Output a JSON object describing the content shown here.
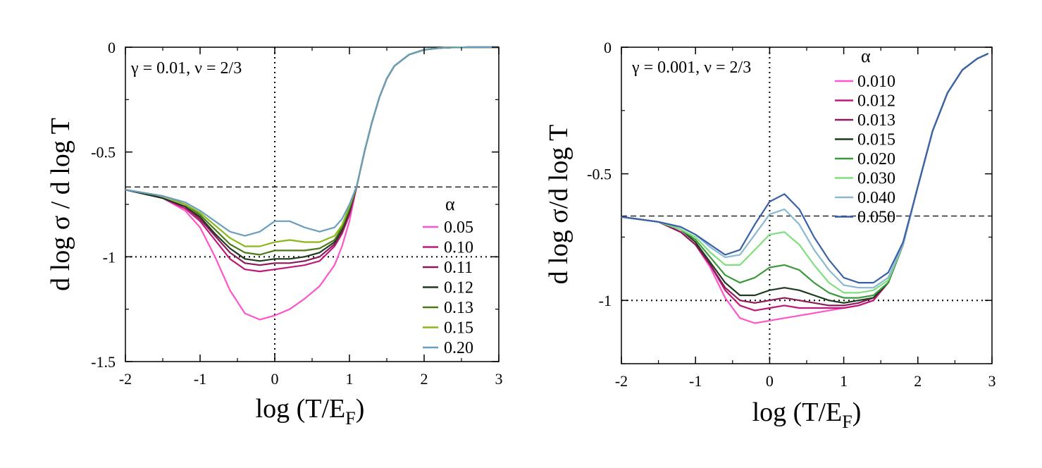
{
  "chart_data": [
    {
      "type": "line",
      "title": "",
      "annotation": "γ = 0.01, ν = 2/3",
      "xlabel": "log (T/E",
      "xlabel_sub": "F",
      "xlabel_close": ")",
      "ylabel": "d log σ / d log T",
      "xlim": [
        -2,
        3
      ],
      "ylim": [
        -1.5,
        0
      ],
      "xticks": [
        -2,
        -1,
        0,
        1,
        2,
        3
      ],
      "xtick_labels": [
        "-2",
        "-1",
        "0",
        "1",
        "2",
        "3"
      ],
      "yticks": [
        0,
        -0.5,
        -1,
        -1.5
      ],
      "ytick_labels": [
        "0",
        "-0.5",
        "-1",
        "-1.5"
      ],
      "reference_lines": [
        {
          "orientation": "horizontal",
          "value": -0.6667,
          "style": "dashed"
        },
        {
          "orientation": "horizontal",
          "value": -1,
          "style": "dotted"
        },
        {
          "orientation": "vertical",
          "value": 0,
          "style": "dotted"
        }
      ],
      "legend_title": "α",
      "legend_position": "right",
      "series": [
        {
          "name": "0.05",
          "color": "#ff55cc",
          "x": [
            -2,
            -1.5,
            -1.2,
            -1.0,
            -0.8,
            -0.6,
            -0.4,
            -0.2,
            0.0,
            0.2,
            0.4,
            0.6,
            0.8,
            0.9,
            1.0,
            1.1,
            1.2,
            1.3,
            1.4,
            1.5,
            1.6,
            1.8,
            2.0,
            2.2,
            2.4,
            2.6,
            2.8,
            3.0
          ],
          "y": [
            -0.68,
            -0.72,
            -0.78,
            -0.86,
            -1.0,
            -1.16,
            -1.27,
            -1.3,
            -1.28,
            -1.25,
            -1.2,
            -1.14,
            -1.04,
            -0.95,
            -0.83,
            -0.66,
            -0.5,
            -0.36,
            -0.24,
            -0.15,
            -0.09,
            -0.035,
            -0.012,
            -0.004,
            -0.001,
            0,
            0,
            0
          ]
        },
        {
          "name": "0.10",
          "color": "#c0187a",
          "x": [
            -2,
            -1.5,
            -1.2,
            -1.0,
            -0.8,
            -0.6,
            -0.4,
            -0.2,
            0.0,
            0.2,
            0.4,
            0.6,
            0.8,
            0.9,
            1.0,
            1.1,
            1.2,
            1.3,
            1.4,
            1.5,
            1.6,
            1.8,
            2.0,
            2.2,
            2.4,
            2.6,
            2.8,
            3.0
          ],
          "y": [
            -0.68,
            -0.72,
            -0.77,
            -0.83,
            -0.92,
            -1.01,
            -1.06,
            -1.07,
            -1.06,
            -1.05,
            -1.04,
            -1.02,
            -0.95,
            -0.89,
            -0.8,
            -0.66,
            -0.5,
            -0.36,
            -0.24,
            -0.15,
            -0.09,
            -0.035,
            -0.012,
            -0.004,
            -0.001,
            0,
            0,
            0
          ]
        },
        {
          "name": "0.11",
          "color": "#8b1a5a",
          "x": [
            -2,
            -1.5,
            -1.2,
            -1.0,
            -0.8,
            -0.6,
            -0.4,
            -0.2,
            0.0,
            0.2,
            0.4,
            0.6,
            0.8,
            0.9,
            1.0,
            1.1,
            1.2,
            1.3,
            1.4,
            1.5,
            1.6,
            1.8,
            2.0,
            2.2,
            2.4,
            2.6,
            2.8,
            3.0
          ],
          "y": [
            -0.68,
            -0.72,
            -0.76,
            -0.82,
            -0.9,
            -0.98,
            -1.03,
            -1.04,
            -1.03,
            -1.03,
            -1.02,
            -1.0,
            -0.94,
            -0.88,
            -0.79,
            -0.66,
            -0.5,
            -0.36,
            -0.24,
            -0.15,
            -0.09,
            -0.035,
            -0.012,
            -0.004,
            -0.001,
            0,
            0,
            0
          ]
        },
        {
          "name": "0.12",
          "color": "#1e3a1e",
          "x": [
            -2,
            -1.5,
            -1.2,
            -1.0,
            -0.8,
            -0.6,
            -0.4,
            -0.2,
            0.0,
            0.2,
            0.4,
            0.6,
            0.8,
            0.9,
            1.0,
            1.1,
            1.2,
            1.3,
            1.4,
            1.5,
            1.6,
            1.8,
            2.0,
            2.2,
            2.4,
            2.6,
            2.8,
            3.0
          ],
          "y": [
            -0.68,
            -0.72,
            -0.76,
            -0.81,
            -0.89,
            -0.96,
            -1.01,
            -1.02,
            -1.01,
            -1.01,
            -1.0,
            -0.98,
            -0.93,
            -0.87,
            -0.78,
            -0.66,
            -0.5,
            -0.36,
            -0.24,
            -0.15,
            -0.09,
            -0.035,
            -0.012,
            -0.004,
            -0.001,
            0,
            0,
            0
          ]
        },
        {
          "name": "0.13",
          "color": "#4a7a1a",
          "x": [
            -2,
            -1.5,
            -1.2,
            -1.0,
            -0.8,
            -0.6,
            -0.4,
            -0.2,
            0.0,
            0.2,
            0.4,
            0.6,
            0.8,
            0.9,
            1.0,
            1.1,
            1.2,
            1.3,
            1.4,
            1.5,
            1.6,
            1.8,
            2.0,
            2.2,
            2.4,
            2.6,
            2.8,
            3.0
          ],
          "y": [
            -0.68,
            -0.71,
            -0.75,
            -0.8,
            -0.87,
            -0.94,
            -0.98,
            -0.99,
            -0.97,
            -0.97,
            -0.97,
            -0.96,
            -0.92,
            -0.86,
            -0.77,
            -0.66,
            -0.5,
            -0.36,
            -0.24,
            -0.15,
            -0.09,
            -0.035,
            -0.012,
            -0.004,
            -0.001,
            0,
            0,
            0
          ]
        },
        {
          "name": "0.15",
          "color": "#8ab81a",
          "x": [
            -2,
            -1.5,
            -1.2,
            -1.0,
            -0.8,
            -0.6,
            -0.4,
            -0.2,
            0.0,
            0.2,
            0.4,
            0.6,
            0.8,
            0.9,
            1.0,
            1.1,
            1.2,
            1.3,
            1.4,
            1.5,
            1.6,
            1.8,
            2.0,
            2.2,
            2.4,
            2.6,
            2.8,
            3.0
          ],
          "y": [
            -0.68,
            -0.71,
            -0.75,
            -0.79,
            -0.85,
            -0.91,
            -0.95,
            -0.95,
            -0.93,
            -0.92,
            -0.93,
            -0.93,
            -0.9,
            -0.85,
            -0.76,
            -0.66,
            -0.5,
            -0.36,
            -0.24,
            -0.15,
            -0.09,
            -0.035,
            -0.012,
            -0.004,
            -0.001,
            0,
            0,
            0
          ]
        },
        {
          "name": "0.20",
          "color": "#6a9ec0",
          "x": [
            -2,
            -1.5,
            -1.2,
            -1.0,
            -0.8,
            -0.6,
            -0.4,
            -0.2,
            0.0,
            0.2,
            0.4,
            0.6,
            0.8,
            0.9,
            1.0,
            1.1,
            1.2,
            1.3,
            1.4,
            1.5,
            1.6,
            1.8,
            2.0,
            2.2,
            2.4,
            2.6,
            2.8,
            3.0
          ],
          "y": [
            -0.68,
            -0.71,
            -0.74,
            -0.78,
            -0.83,
            -0.88,
            -0.9,
            -0.88,
            -0.83,
            -0.83,
            -0.86,
            -0.88,
            -0.86,
            -0.82,
            -0.75,
            -0.66,
            -0.5,
            -0.36,
            -0.24,
            -0.15,
            -0.09,
            -0.035,
            -0.012,
            -0.004,
            -0.001,
            0,
            0,
            0
          ]
        }
      ]
    },
    {
      "type": "line",
      "title": "",
      "annotation": "γ = 0.001, ν = 2/3",
      "xlabel": "log (T/E",
      "xlabel_sub": "F",
      "xlabel_close": ")",
      "ylabel": "d log σ/d log T",
      "xlim": [
        -2,
        3
      ],
      "ylim": [
        -1.25,
        0
      ],
      "xticks": [
        -2,
        -1,
        0,
        1,
        2,
        3
      ],
      "xtick_labels": [
        "-2",
        "-1",
        "0",
        "1",
        "2",
        "3"
      ],
      "yticks": [
        0,
        -0.5,
        -1
      ],
      "ytick_labels": [
        "0",
        "-0.5",
        "-1"
      ],
      "reference_lines": [
        {
          "orientation": "horizontal",
          "value": -0.6667,
          "style": "dashed"
        },
        {
          "orientation": "horizontal",
          "value": -1,
          "style": "dotted"
        },
        {
          "orientation": "vertical",
          "value": 0,
          "style": "dotted"
        }
      ],
      "legend_title": "α",
      "legend_position": "top-right",
      "series": [
        {
          "name": "0.010",
          "color": "#ff55cc",
          "x": [
            -2,
            -1.5,
            -1.2,
            -1.0,
            -0.8,
            -0.6,
            -0.4,
            -0.2,
            0.0,
            0.2,
            0.4,
            0.6,
            0.8,
            1.0,
            1.2,
            1.4,
            1.6,
            1.8,
            2.0,
            2.2,
            2.4,
            2.6,
            2.8,
            2.95
          ],
          "y": [
            -0.67,
            -0.69,
            -0.73,
            -0.78,
            -0.87,
            -0.99,
            -1.07,
            -1.09,
            -1.08,
            -1.07,
            -1.06,
            -1.05,
            -1.04,
            -1.03,
            -1.02,
            -1.0,
            -0.93,
            -0.78,
            -0.55,
            -0.33,
            -0.18,
            -0.09,
            -0.045,
            -0.025
          ]
        },
        {
          "name": "0.012",
          "color": "#c0187a",
          "x": [
            -2,
            -1.5,
            -1.2,
            -1.0,
            -0.8,
            -0.6,
            -0.4,
            -0.2,
            0.0,
            0.2,
            0.4,
            0.6,
            0.8,
            1.0,
            1.2,
            1.4,
            1.6,
            1.8,
            2.0,
            2.2,
            2.4,
            2.6,
            2.8,
            2.95
          ],
          "y": [
            -0.67,
            -0.69,
            -0.73,
            -0.78,
            -0.86,
            -0.96,
            -1.02,
            -1.04,
            -1.03,
            -1.02,
            -1.03,
            -1.03,
            -1.03,
            -1.03,
            -1.02,
            -1.0,
            -0.93,
            -0.78,
            -0.55,
            -0.33,
            -0.18,
            -0.09,
            -0.045,
            -0.025
          ]
        },
        {
          "name": "0.013",
          "color": "#8b1a5a",
          "x": [
            -2,
            -1.5,
            -1.2,
            -1.0,
            -0.8,
            -0.6,
            -0.4,
            -0.2,
            0.0,
            0.2,
            0.4,
            0.6,
            0.8,
            1.0,
            1.2,
            1.4,
            1.6,
            1.8,
            2.0,
            2.2,
            2.4,
            2.6,
            2.8,
            2.95
          ],
          "y": [
            -0.67,
            -0.69,
            -0.73,
            -0.78,
            -0.86,
            -0.95,
            -1.0,
            -1.01,
            -1.0,
            -0.99,
            -1.0,
            -1.01,
            -1.02,
            -1.02,
            -1.01,
            -0.99,
            -0.93,
            -0.78,
            -0.55,
            -0.33,
            -0.18,
            -0.09,
            -0.045,
            -0.025
          ]
        },
        {
          "name": "0.015",
          "color": "#1e3a1e",
          "x": [
            -2,
            -1.5,
            -1.2,
            -1.0,
            -0.8,
            -0.6,
            -0.4,
            -0.2,
            0.0,
            0.2,
            0.4,
            0.6,
            0.8,
            1.0,
            1.2,
            1.4,
            1.6,
            1.8,
            2.0,
            2.2,
            2.4,
            2.6,
            2.8,
            2.95
          ],
          "y": [
            -0.67,
            -0.69,
            -0.72,
            -0.77,
            -0.85,
            -0.93,
            -0.98,
            -0.98,
            -0.96,
            -0.95,
            -0.96,
            -0.98,
            -1.0,
            -1.01,
            -1.0,
            -0.99,
            -0.93,
            -0.78,
            -0.55,
            -0.33,
            -0.18,
            -0.09,
            -0.045,
            -0.025
          ]
        },
        {
          "name": "0.020",
          "color": "#3a9a3a",
          "x": [
            -2,
            -1.5,
            -1.2,
            -1.0,
            -0.8,
            -0.6,
            -0.4,
            -0.2,
            0.0,
            0.2,
            0.4,
            0.6,
            0.8,
            1.0,
            1.2,
            1.4,
            1.6,
            1.8,
            2.0,
            2.2,
            2.4,
            2.6,
            2.8,
            2.95
          ],
          "y": [
            -0.67,
            -0.69,
            -0.72,
            -0.76,
            -0.83,
            -0.9,
            -0.93,
            -0.91,
            -0.87,
            -0.86,
            -0.88,
            -0.93,
            -0.97,
            -0.99,
            -0.99,
            -0.98,
            -0.93,
            -0.78,
            -0.55,
            -0.33,
            -0.18,
            -0.09,
            -0.045,
            -0.025
          ]
        },
        {
          "name": "0.030",
          "color": "#7de07d",
          "x": [
            -2,
            -1.5,
            -1.2,
            -1.0,
            -0.8,
            -0.6,
            -0.4,
            -0.2,
            0.0,
            0.2,
            0.4,
            0.6,
            0.8,
            1.0,
            1.2,
            1.4,
            1.6,
            1.8,
            2.0,
            2.2,
            2.4,
            2.6,
            2.8,
            2.95
          ],
          "y": [
            -0.67,
            -0.69,
            -0.72,
            -0.75,
            -0.81,
            -0.86,
            -0.86,
            -0.8,
            -0.74,
            -0.73,
            -0.78,
            -0.86,
            -0.93,
            -0.97,
            -0.97,
            -0.96,
            -0.92,
            -0.78,
            -0.55,
            -0.33,
            -0.18,
            -0.09,
            -0.045,
            -0.025
          ]
        },
        {
          "name": "0.040",
          "color": "#8ab8d0",
          "x": [
            -2,
            -1.5,
            -1.2,
            -1.0,
            -0.8,
            -0.6,
            -0.4,
            -0.2,
            0.0,
            0.2,
            0.4,
            0.6,
            0.8,
            1.0,
            1.2,
            1.4,
            1.6,
            1.8,
            2.0,
            2.2,
            2.4,
            2.6,
            2.8,
            2.95
          ],
          "y": [
            -0.67,
            -0.69,
            -0.71,
            -0.74,
            -0.79,
            -0.83,
            -0.82,
            -0.74,
            -0.66,
            -0.64,
            -0.7,
            -0.8,
            -0.88,
            -0.94,
            -0.95,
            -0.95,
            -0.91,
            -0.78,
            -0.55,
            -0.33,
            -0.18,
            -0.09,
            -0.045,
            -0.025
          ]
        },
        {
          "name": "0.050",
          "color": "#3a60a8",
          "x": [
            -2,
            -1.5,
            -1.2,
            -1.0,
            -0.8,
            -0.6,
            -0.4,
            -0.2,
            0.0,
            0.2,
            0.4,
            0.6,
            0.8,
            1.0,
            1.2,
            1.4,
            1.6,
            1.8,
            2.0,
            2.2,
            2.4,
            2.6,
            2.8,
            2.95
          ],
          "y": [
            -0.67,
            -0.69,
            -0.71,
            -0.74,
            -0.78,
            -0.82,
            -0.8,
            -0.7,
            -0.61,
            -0.58,
            -0.64,
            -0.75,
            -0.84,
            -0.91,
            -0.93,
            -0.93,
            -0.89,
            -0.77,
            -0.55,
            -0.33,
            -0.18,
            -0.09,
            -0.045,
            -0.025
          ]
        }
      ]
    }
  ]
}
